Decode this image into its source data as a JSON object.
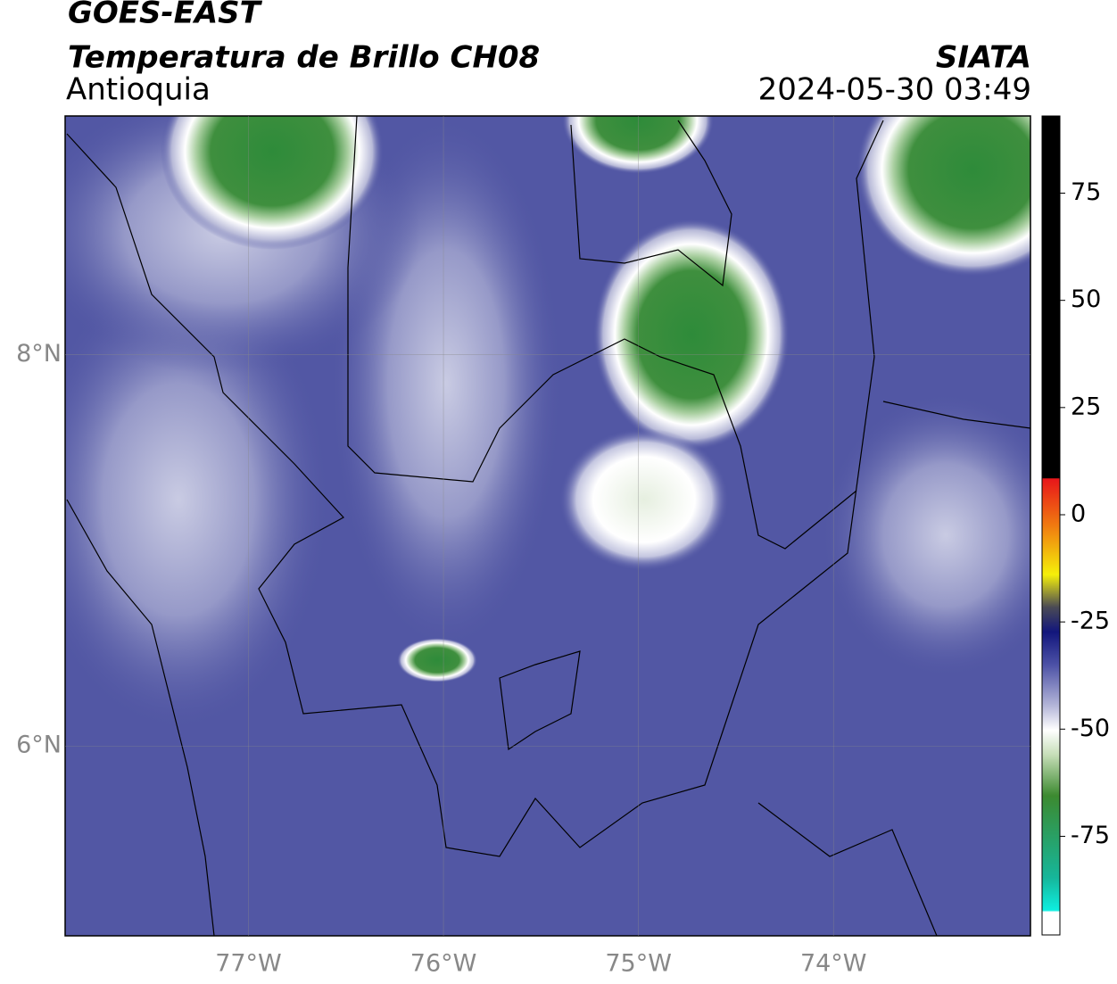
{
  "map": {
    "title": "GOES-EAST",
    "subtitle": "Temperatura de Brillo CH08",
    "region": "Antioquia",
    "source": "SIATA",
    "datetime": "2024-05-30 03:49",
    "xlim": [
      -77.94,
      -72.99
    ],
    "ylim": [
      5.03,
      9.22
    ],
    "xticks": [
      {
        "value": -77,
        "label": "77°W"
      },
      {
        "value": -76,
        "label": "76°W"
      },
      {
        "value": -75,
        "label": "75°W"
      },
      {
        "value": -74,
        "label": "74°W"
      }
    ],
    "yticks": [
      {
        "value": 8,
        "label": "8°N"
      },
      {
        "value": 6,
        "label": "6°N"
      }
    ],
    "grid": true,
    "colorbar": {
      "lim": [
        -98,
        93
      ],
      "ticks": [
        75,
        50,
        25,
        0,
        -25,
        -50,
        -75
      ]
    }
  }
}
